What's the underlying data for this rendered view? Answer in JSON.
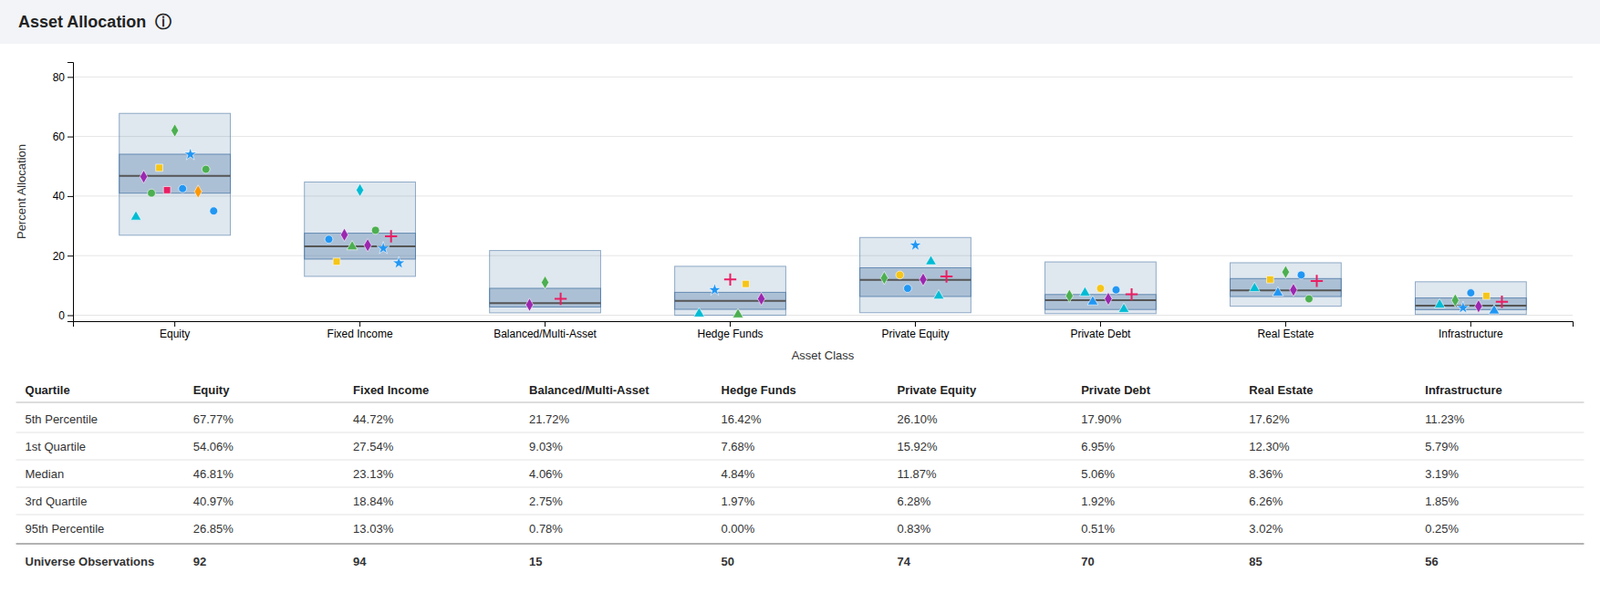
{
  "chart_data": {
    "type": "box",
    "title": "Asset Allocation  ⓘ",
    "xlabel": "Asset Class",
    "ylabel": "Percent Allocation",
    "ylim": [
      -2,
      85
    ],
    "yticks": [
      0,
      20,
      40,
      60,
      80
    ],
    "grid": true,
    "categories": [
      "Equity",
      "Fixed Income",
      "Balanced/Multi-Asset",
      "Hedge Funds",
      "Private Equity",
      "Private Debt",
      "Real Estate",
      "Infrastructure"
    ],
    "boxes": [
      {
        "q5": 67.77,
        "q1": 54.06,
        "median": 46.81,
        "q3": 40.97,
        "q95": 26.85
      },
      {
        "q5": 44.72,
        "q1": 27.54,
        "median": 23.13,
        "q3": 18.84,
        "q95": 13.03
      },
      {
        "q5": 21.72,
        "q1": 9.03,
        "median": 4.06,
        "q3": 2.75,
        "q95": 0.78
      },
      {
        "q5": 16.42,
        "q1": 7.68,
        "median": 4.84,
        "q3": 1.97,
        "q95": 0.0
      },
      {
        "q5": 26.1,
        "q1": 15.92,
        "median": 11.87,
        "q3": 6.28,
        "q95": 0.83
      },
      {
        "q5": 17.9,
        "q1": 6.95,
        "median": 5.06,
        "q3": 1.92,
        "q95": 0.51
      },
      {
        "q5": 17.62,
        "q1": 12.3,
        "median": 8.36,
        "q3": 6.26,
        "q95": 3.02
      },
      {
        "q5": 11.23,
        "q1": 5.79,
        "median": 3.19,
        "q3": 1.85,
        "q95": 0.25
      }
    ],
    "points": [
      [
        {
          "value": 62.0,
          "color": "#4caf50",
          "marker": "diamond"
        },
        {
          "value": 54.0,
          "color": "#2196f3",
          "marker": "star"
        },
        {
          "value": 49.5,
          "color": "#f5c518",
          "marker": "square"
        },
        {
          "value": 49.0,
          "color": "#4caf50",
          "marker": "circle"
        },
        {
          "value": 46.5,
          "color": "#9c27b0",
          "marker": "diamond"
        },
        {
          "value": 42.5,
          "color": "#2196f3",
          "marker": "circle"
        },
        {
          "value": 42.0,
          "color": "#e91e63",
          "marker": "square"
        },
        {
          "value": 41.5,
          "color": "#ff9800",
          "marker": "diamond"
        },
        {
          "value": 41.0,
          "color": "#4caf50",
          "marker": "circle"
        },
        {
          "value": 35.0,
          "color": "#2196f3",
          "marker": "circle"
        },
        {
          "value": 33.0,
          "color": "#00bcd4",
          "marker": "triangle"
        }
      ],
      [
        {
          "value": 42.0,
          "color": "#00bcd4",
          "marker": "diamond"
        },
        {
          "value": 28.5,
          "color": "#4caf50",
          "marker": "circle"
        },
        {
          "value": 27.0,
          "color": "#9c27b0",
          "marker": "diamond"
        },
        {
          "value": 26.5,
          "color": "#e91e63",
          "marker": "plus"
        },
        {
          "value": 25.5,
          "color": "#2196f3",
          "marker": "circle"
        },
        {
          "value": 23.5,
          "color": "#9c27b0",
          "marker": "diamond"
        },
        {
          "value": 23.0,
          "color": "#4caf50",
          "marker": "triangle"
        },
        {
          "value": 22.5,
          "color": "#2196f3",
          "marker": "star"
        },
        {
          "value": 18.0,
          "color": "#f5c518",
          "marker": "square"
        },
        {
          "value": 17.5,
          "color": "#2196f3",
          "marker": "star"
        }
      ],
      [
        {
          "value": 11.0,
          "color": "#4caf50",
          "marker": "diamond"
        },
        {
          "value": 5.5,
          "color": "#e91e63",
          "marker": "plus"
        },
        {
          "value": 3.5,
          "color": "#9c27b0",
          "marker": "diamond"
        }
      ],
      [
        {
          "value": 12.0,
          "color": "#e91e63",
          "marker": "plus"
        },
        {
          "value": 10.5,
          "color": "#f5c518",
          "marker": "square"
        },
        {
          "value": 8.5,
          "color": "#2196f3",
          "marker": "star"
        },
        {
          "value": 5.5,
          "color": "#9c27b0",
          "marker": "diamond"
        },
        {
          "value": 0.5,
          "color": "#00bcd4",
          "marker": "triangle"
        },
        {
          "value": 0.2,
          "color": "#4caf50",
          "marker": "triangle"
        }
      ],
      [
        {
          "value": 23.5,
          "color": "#2196f3",
          "marker": "star"
        },
        {
          "value": 18.0,
          "color": "#00bcd4",
          "marker": "triangle"
        },
        {
          "value": 13.5,
          "color": "#f5c518",
          "marker": "circle"
        },
        {
          "value": 13.0,
          "color": "#e91e63",
          "marker": "plus"
        },
        {
          "value": 12.5,
          "color": "#4caf50",
          "marker": "diamond"
        },
        {
          "value": 12.0,
          "color": "#9c27b0",
          "marker": "diamond"
        },
        {
          "value": 9.0,
          "color": "#2196f3",
          "marker": "circle"
        },
        {
          "value": 6.5,
          "color": "#00bcd4",
          "marker": "triangle"
        }
      ],
      [
        {
          "value": 9.0,
          "color": "#f5c518",
          "marker": "circle"
        },
        {
          "value": 8.5,
          "color": "#2196f3",
          "marker": "circle"
        },
        {
          "value": 7.5,
          "color": "#00bcd4",
          "marker": "triangle"
        },
        {
          "value": 7.0,
          "color": "#e91e63",
          "marker": "plus"
        },
        {
          "value": 6.5,
          "color": "#4caf50",
          "marker": "diamond"
        },
        {
          "value": 5.5,
          "color": "#9c27b0",
          "marker": "diamond"
        },
        {
          "value": 4.5,
          "color": "#2196f3",
          "marker": "triangle"
        },
        {
          "value": 2.0,
          "color": "#00bcd4",
          "marker": "triangle"
        }
      ],
      [
        {
          "value": 14.5,
          "color": "#4caf50",
          "marker": "diamond"
        },
        {
          "value": 13.5,
          "color": "#2196f3",
          "marker": "circle"
        },
        {
          "value": 12.0,
          "color": "#f5c518",
          "marker": "square"
        },
        {
          "value": 11.5,
          "color": "#e91e63",
          "marker": "plus"
        },
        {
          "value": 9.0,
          "color": "#00bcd4",
          "marker": "triangle"
        },
        {
          "value": 8.5,
          "color": "#9c27b0",
          "marker": "diamond"
        },
        {
          "value": 7.5,
          "color": "#2196f3",
          "marker": "triangle"
        },
        {
          "value": 5.5,
          "color": "#4caf50",
          "marker": "circle"
        }
      ],
      [
        {
          "value": 7.5,
          "color": "#2196f3",
          "marker": "circle"
        },
        {
          "value": 6.5,
          "color": "#f5c518",
          "marker": "square"
        },
        {
          "value": 5.0,
          "color": "#4caf50",
          "marker": "diamond"
        },
        {
          "value": 4.5,
          "color": "#e91e63",
          "marker": "plus"
        },
        {
          "value": 3.5,
          "color": "#00bcd4",
          "marker": "triangle"
        },
        {
          "value": 3.0,
          "color": "#9c27b0",
          "marker": "diamond"
        },
        {
          "value": 2.5,
          "color": "#2196f3",
          "marker": "star"
        },
        {
          "value": 1.5,
          "color": "#2196f3",
          "marker": "triangle"
        }
      ]
    ],
    "table": {
      "headers": [
        "Quartile",
        "Equity",
        "Fixed Income",
        "Balanced/Multi-Asset",
        "Hedge Funds",
        "Private Equity",
        "Private Debt",
        "Real Estate",
        "Infrastructure"
      ],
      "rows": [
        [
          "5th Percentile",
          "67.77%",
          "44.72%",
          "21.72%",
          "16.42%",
          "26.10%",
          "17.90%",
          "17.62%",
          "11.23%"
        ],
        [
          "1st Quartile",
          "54.06%",
          "27.54%",
          "9.03%",
          "7.68%",
          "15.92%",
          "6.95%",
          "12.30%",
          "5.79%"
        ],
        [
          "Median",
          "46.81%",
          "23.13%",
          "4.06%",
          "4.84%",
          "11.87%",
          "5.06%",
          "8.36%",
          "3.19%"
        ],
        [
          "3rd Quartile",
          "40.97%",
          "18.84%",
          "2.75%",
          "1.97%",
          "6.28%",
          "1.92%",
          "6.26%",
          "1.85%"
        ],
        [
          "95th Percentile",
          "26.85%",
          "13.03%",
          "0.78%",
          "0.00%",
          "0.83%",
          "0.51%",
          "3.02%",
          "0.25%"
        ],
        [
          "Universe Observations",
          "92",
          "94",
          "15",
          "50",
          "74",
          "70",
          "85",
          "56"
        ]
      ]
    }
  }
}
